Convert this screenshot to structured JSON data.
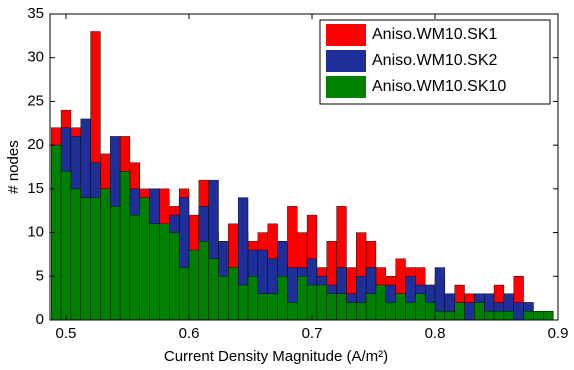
{
  "chart_data": {
    "type": "histogram",
    "xlabel": "Current Density Magnitude (A/m²)",
    "ylabel": "# nodes",
    "bins": [
      0.488,
      0.496,
      0.504,
      0.512,
      0.52,
      0.528,
      0.536,
      0.544,
      0.552,
      0.56,
      0.568,
      0.576,
      0.584,
      0.592,
      0.6,
      0.608,
      0.616,
      0.624,
      0.632,
      0.64,
      0.648,
      0.656,
      0.664,
      0.672,
      0.68,
      0.688,
      0.696,
      0.704,
      0.712,
      0.72,
      0.728,
      0.736,
      0.744,
      0.752,
      0.76,
      0.768,
      0.776,
      0.784,
      0.792,
      0.8,
      0.808,
      0.816,
      0.824,
      0.832,
      0.84,
      0.848,
      0.856,
      0.864,
      0.872,
      0.88,
      0.888,
      0.896
    ],
    "series": [
      {
        "name": "Aniso.WM10.SK1",
        "color": "#ff0000",
        "values": [
          22,
          24,
          22,
          18,
          33,
          19,
          17,
          21,
          18,
          15,
          15,
          15,
          13,
          15,
          12,
          16,
          10,
          9,
          11,
          10,
          9,
          10,
          11,
          9,
          13,
          10,
          12,
          6,
          9,
          13,
          6,
          10,
          9,
          6,
          5,
          7,
          6,
          6,
          4,
          5,
          3,
          4,
          3,
          3,
          3,
          4,
          3,
          5,
          2,
          1,
          1
        ]
      },
      {
        "name": "Aniso.WM10.SK2",
        "color": "#1f2f9a",
        "values": [
          20,
          22,
          21,
          23,
          18,
          15,
          21,
          17,
          15,
          12,
          15,
          9,
          12,
          14,
          6,
          13,
          16,
          9,
          6,
          14,
          8,
          8,
          7,
          9,
          6,
          6,
          7,
          5,
          4,
          6,
          3,
          5,
          6,
          3,
          4,
          3,
          5,
          4,
          4,
          6,
          3,
          2,
          2,
          3,
          3,
          2,
          3,
          2,
          2,
          1,
          1
        ]
      },
      {
        "name": "Aniso.WM10.SK10",
        "color": "#008000",
        "values": [
          20,
          17,
          15,
          14,
          14,
          15,
          13,
          17,
          12,
          14,
          11,
          11,
          10,
          6,
          8,
          9,
          7,
          5,
          6,
          4,
          5,
          3,
          3,
          5,
          2,
          5,
          4,
          4,
          3,
          3,
          2,
          2,
          3,
          4,
          2,
          3,
          2,
          3,
          2,
          1,
          1,
          2,
          0,
          2,
          1,
          1,
          1,
          0,
          1,
          1,
          1
        ]
      }
    ],
    "xlim": [
      0.487,
      0.9
    ],
    "ylim": [
      0,
      35
    ],
    "xticks": [
      0.5,
      0.6,
      0.7,
      0.8,
      0.9
    ],
    "yticks": [
      0,
      5,
      10,
      15,
      20,
      25,
      30,
      35
    ],
    "legend": "upper right"
  }
}
